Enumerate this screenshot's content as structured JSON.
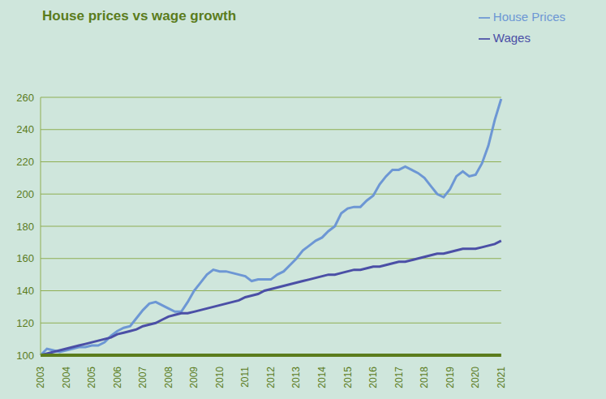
{
  "chart_data": {
    "type": "line",
    "title": "House prices vs wage growth",
    "categories": [
      "2003",
      null,
      null,
      null,
      "2004",
      null,
      null,
      null,
      "2005",
      null,
      null,
      null,
      "2006",
      null,
      null,
      null,
      "2007",
      null,
      null,
      null,
      "2008",
      null,
      null,
      null,
      "2009",
      null,
      null,
      null,
      "2010",
      null,
      null,
      null,
      "2011",
      null,
      null,
      null,
      "2012",
      null,
      null,
      null,
      "2013",
      null,
      null,
      null,
      "2014",
      null,
      null,
      null,
      "2015",
      null,
      null,
      null,
      "2016",
      null,
      null,
      null,
      "2017",
      null,
      null,
      null,
      "2018",
      null,
      null,
      null,
      "2019",
      null,
      null,
      null,
      "2020",
      null,
      null,
      null,
      "2021"
    ],
    "series": [
      {
        "name": "House Prices",
        "color": "#6d97d4",
        "values": [
          100,
          104,
          103,
          102,
          103,
          104,
          105,
          105,
          106,
          106,
          108,
          112,
          115,
          117,
          118,
          123,
          128,
          132,
          133,
          131,
          129,
          127,
          127,
          133,
          140,
          145,
          150,
          153,
          152,
          152,
          151,
          150,
          149,
          146,
          147,
          147,
          147,
          150,
          152,
          156,
          160,
          165,
          168,
          171,
          173,
          177,
          180,
          188,
          191,
          192,
          192,
          196,
          199,
          206,
          211,
          215,
          215,
          217,
          215,
          213,
          210,
          205,
          200,
          198,
          203,
          211,
          214,
          211,
          212,
          219,
          230,
          246,
          259
        ]
      },
      {
        "name": "Wages",
        "color": "#4b4fa6",
        "values": [
          100,
          101,
          102,
          103,
          104,
          105,
          106,
          107,
          108,
          109,
          110,
          111,
          113,
          114,
          115,
          116,
          118,
          119,
          120,
          122,
          124,
          125,
          126,
          126,
          127,
          128,
          129,
          130,
          131,
          132,
          133,
          134,
          136,
          137,
          138,
          140,
          141,
          142,
          143,
          144,
          145,
          146,
          147,
          148,
          149,
          150,
          150,
          151,
          152,
          153,
          153,
          154,
          155,
          155,
          156,
          157,
          158,
          158,
          159,
          160,
          161,
          162,
          163,
          163,
          164,
          165,
          166,
          166,
          166,
          167,
          168,
          169,
          171
        ]
      }
    ],
    "ylim": [
      100,
      260
    ],
    "yticks": [
      100,
      120,
      140,
      160,
      180,
      200,
      220,
      240,
      260
    ],
    "grid": true,
    "legend": "top right"
  }
}
